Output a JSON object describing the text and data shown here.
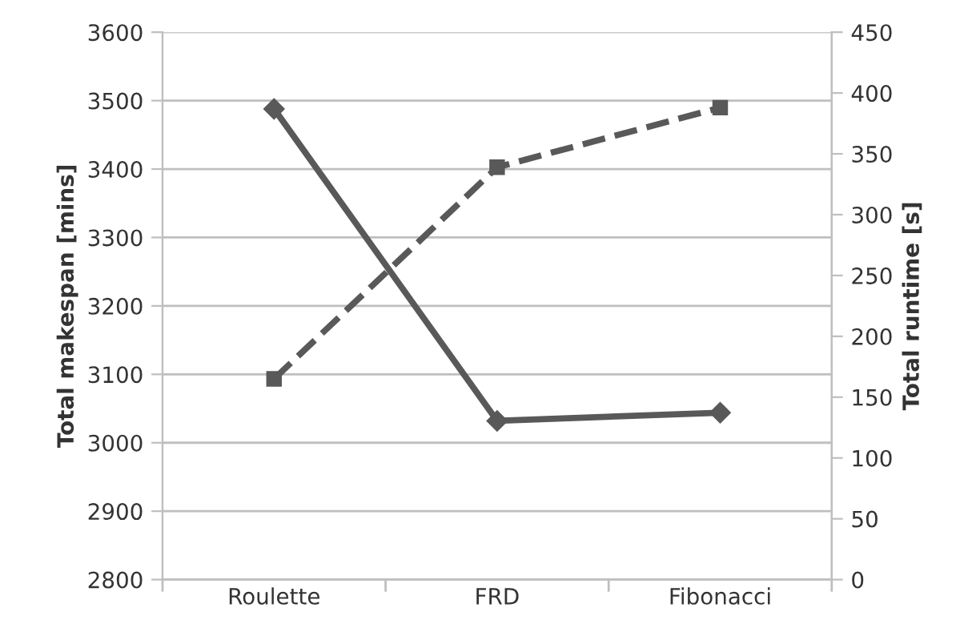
{
  "chart_data": {
    "type": "line",
    "categories": [
      "Roulette",
      "FRD",
      "Fibonacci"
    ],
    "ylabel": "Total makespan [mins]",
    "y2label": "Total runtime [s]",
    "ylim": [
      2800,
      3600
    ],
    "yticks": [
      2800,
      2900,
      3000,
      3100,
      3200,
      3300,
      3400,
      3500,
      3600
    ],
    "y2lim": [
      0,
      450
    ],
    "y2ticks": [
      0,
      50,
      100,
      150,
      200,
      250,
      300,
      350,
      400,
      450
    ],
    "grid": "y",
    "series": [
      {
        "color": "#595959",
        "values": [
          3488,
          3032,
          3044
        ],
        "marker": "diamond",
        "line_style": "solid"
      },
      {
        "color": "#595959",
        "values": [
          165,
          339,
          388
        ],
        "marker": "square",
        "line_style": "dashed",
        "axis": "y2"
      }
    ]
  }
}
